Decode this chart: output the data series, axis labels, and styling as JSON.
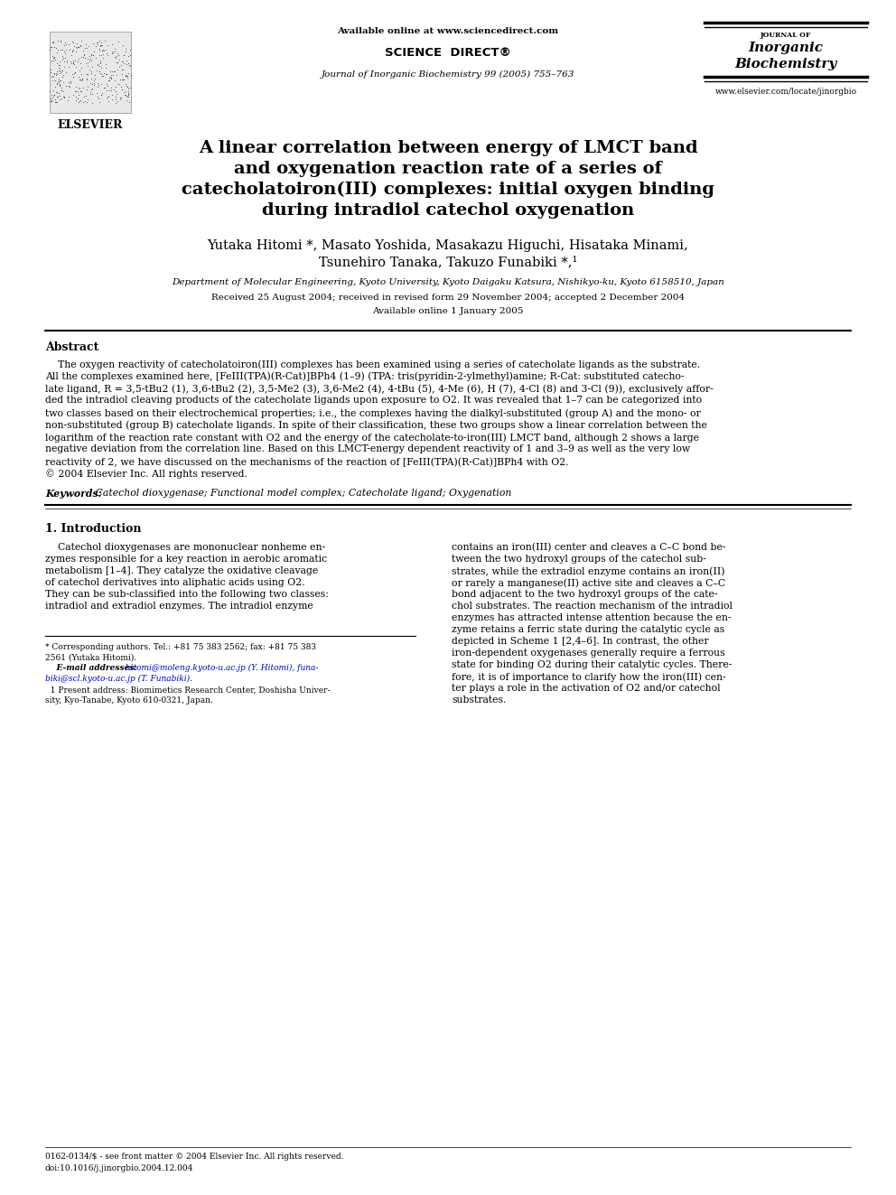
{
  "background_color": "#ffffff",
  "page_width": 9.92,
  "page_height": 13.23,
  "header": {
    "available_online": "Available online at www.sciencedirect.com",
    "sciencedirect": "SCIENCE  DIRECT®",
    "journal_line": "Journal of Inorganic Biochemistry 99 (2005) 755–763",
    "website": "www.elsevier.com/locate/jinorgbio",
    "elsevier_text": "ELSEVIER",
    "journal_name_small": "JOURNAL OF",
    "journal_name1": "Inorganic",
    "journal_name2": "Biochemistry"
  },
  "title_line1": "A linear correlation between energy of LMCT band",
  "title_line2": "and oxygenation reaction rate of a series of",
  "title_line3": "catecholatoiron(III) complexes: initial oxygen binding",
  "title_line4": "during intradiol catechol oxygenation",
  "authors_line1": "Yutaka Hitomi *, Masato Yoshida, Masakazu Higuchi, Hisataka Minami,",
  "authors_line2": "Tsunehiro Tanaka, Takuzo Funabiki *,¹",
  "affiliation": "Department of Molecular Engineering, Kyoto University, Kyoto Daigaku Katsura, Nishikyo-ku, Kyoto 6158510, Japan",
  "dates_line1": "Received 25 August 2004; received in revised form 29 November 2004; accepted 2 December 2004",
  "dates_line2": "Available online 1 January 2005",
  "abstract_title": "Abstract",
  "abstract_body": "    The oxygen reactivity of catecholatoiron(III) complexes has been examined using a series of catecholate ligands as the substrate.\nAll the complexes examined here, [FeIII(TPA)(R-Cat)]BPh4 (1–9) (TPA: tris(pyridin-2-ylmethyl)amine; R-Cat: substituted catecho-\nlate ligand, R = 3,5-tBu2 (1), 3,6-tBu2 (2), 3,5-Me2 (3), 3,6-Me2 (4), 4-tBu (5), 4-Me (6), H (7), 4-Cl (8) and 3-Cl (9)), exclusively affor-\nded the intradiol cleaving products of the catecholate ligands upon exposure to O2. It was revealed that 1–7 can be categorized into\ntwo classes based on their electrochemical properties; i.e., the complexes having the dialkyl-substituted (group A) and the mono- or\nnon-substituted (group B) catecholate ligands. In spite of their classification, these two groups show a linear correlation between the\nlogarithm of the reaction rate constant with O2 and the energy of the catecholate-to-iron(III) LMCT band, although 2 shows a large\nnegative deviation from the correlation line. Based on this LMCT-energy dependent reactivity of 1 and 3–9 as well as the very low\nreactivity of 2, we have discussed on the mechanisms of the reaction of [FeIII(TPA)(R-Cat)]BPh4 with O2.\n© 2004 Elsevier Inc. All rights reserved.",
  "keywords_label": "Keywords:",
  "keywords_text": " Catechol dioxygenase; Functional model complex; Catecholate ligand; Oxygenation",
  "intro_title": "1. Introduction",
  "intro_col1_line1": "    Catechol dioxygenases are mononuclear nonheme en-",
  "intro_col1_line2": "zymes responsible for a key reaction in aerobic aromatic",
  "intro_col1_line3": "metabolism [1–4]. They catalyze the oxidative cleavage",
  "intro_col1_line4": "of catechol derivatives into aliphatic acids using O2.",
  "intro_col1_line5": "They can be sub-classified into the following two classes:",
  "intro_col1_line6": "intradiol and extradiol enzymes. The intradiol enzyme",
  "intro_col2_line1": "contains an iron(III) center and cleaves a C–C bond be-",
  "intro_col2_line2": "tween the two hydroxyl groups of the catechol sub-",
  "intro_col2_line3": "strates, while the extradiol enzyme contains an iron(II)",
  "intro_col2_line4": "or rarely a manganese(II) active site and cleaves a C–C",
  "intro_col2_line5": "bond adjacent to the two hydroxyl groups of the cate-",
  "intro_col2_line6": "chol substrates. The reaction mechanism of the intradiol",
  "intro_col2_line7": "enzymes has attracted intense attention because the en-",
  "intro_col2_line8": "zyme retains a ferric state during the catalytic cycle as",
  "intro_col2_line9": "depicted in Scheme 1 [2,4–6]. In contrast, the other",
  "intro_col2_line10": "iron-dependent oxygenases generally require a ferrous",
  "intro_col2_line11": "state for binding O2 during their catalytic cycles. There-",
  "intro_col2_line12": "fore, it is of importance to clarify how the iron(III) cen-",
  "intro_col2_line13": "ter plays a role in the activation of O2 and/or catechol",
  "intro_col2_line14": "substrates.",
  "fn_star": "* Corresponding authors. Tel.: +81 75 383 2562; fax: +81 75 383",
  "fn_star2": "2561 (Yutaka Hitomi).",
  "fn_email_label": "    E-mail addresses:",
  "fn_email_text": " hitomi@moleng.kyoto-u.ac.jp (Y. Hitomi), funa-",
  "fn_email_text2": "biki@scl.kyoto-u.ac.jp (T. Funabiki).",
  "fn_1": "  1 Present address: Biomimetics Research Center, Doshisha Univer-",
  "fn_1b": "sity, Kyo-Tanabe, Kyoto 610-0321, Japan.",
  "bottom_text1": "0162-0134/$ - see front matter © 2004 Elsevier Inc. All rights reserved.",
  "bottom_text2": "doi:10.1016/j.jinorgbio.2004.12.004"
}
